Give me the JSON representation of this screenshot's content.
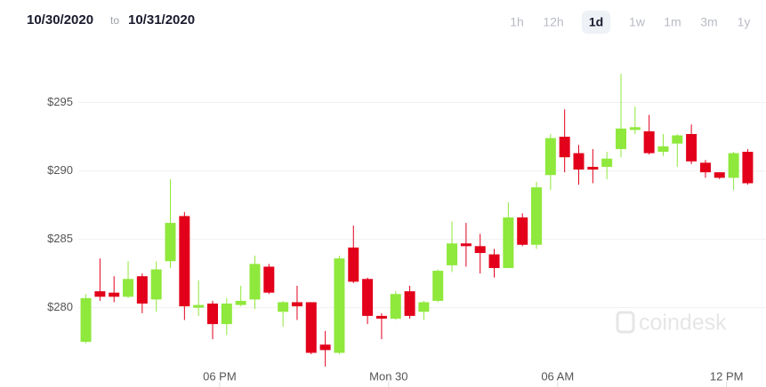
{
  "header": {
    "from": "10/30/2020",
    "to_word": "to",
    "to": "10/31/2020",
    "ranges": [
      "1h",
      "12h",
      "1d",
      "1w",
      "1m",
      "3m",
      "1y"
    ],
    "selected_range": "1d"
  },
  "watermark": "coindesk",
  "chart_data": {
    "type": "candlestick",
    "up_color": "#8fe83c",
    "down_color": "#e2001a",
    "grid": true,
    "open": [
      277.5,
      281.2,
      281.1,
      280.8,
      282.3,
      280.6,
      283.4,
      286.7,
      280.0,
      280.3,
      278.8,
      280.2,
      280.6,
      283.0,
      279.7,
      280.4,
      280.4,
      277.3,
      276.7,
      284.4,
      282.1,
      279.4,
      279.2,
      281.2,
      279.7,
      280.5,
      283.1,
      284.7,
      284.5,
      283.9,
      282.9,
      286.6,
      284.6,
      289.7,
      292.5,
      291.3,
      290.3,
      290.3,
      291.6,
      293.0,
      292.9,
      291.4,
      292.0,
      292.7,
      290.6,
      289.9,
      289.5,
      291.4
    ],
    "high": [
      281.0,
      283.6,
      282.3,
      283.4,
      282.5,
      283.4,
      289.4,
      287.0,
      282.0,
      280.5,
      280.7,
      281.6,
      283.8,
      283.2,
      280.5,
      281.6,
      280.4,
      278.3,
      283.8,
      286.0,
      282.2,
      279.6,
      281.2,
      281.6,
      280.5,
      282.8,
      286.3,
      286.2,
      285.4,
      284.3,
      287.7,
      286.9,
      289.2,
      292.7,
      294.5,
      291.9,
      291.6,
      291.4,
      297.1,
      294.7,
      294.1,
      292.7,
      292.7,
      293.4,
      290.8,
      289.9,
      291.4,
      291.6
    ],
    "low": [
      277.4,
      280.5,
      280.4,
      280.7,
      279.6,
      279.7,
      282.9,
      279.1,
      279.4,
      277.7,
      278.0,
      280.1,
      279.9,
      281.0,
      278.6,
      279.1,
      276.6,
      275.7,
      276.6,
      281.8,
      278.8,
      277.7,
      279.1,
      279.2,
      279.1,
      280.4,
      282.6,
      283.0,
      282.5,
      282.2,
      282.9,
      284.5,
      284.3,
      288.6,
      289.9,
      289.0,
      289.1,
      289.4,
      291.0,
      292.7,
      291.2,
      291.1,
      290.3,
      290.5,
      289.5,
      289.4,
      288.6,
      289.0
    ],
    "close": [
      280.7,
      280.8,
      280.8,
      282.1,
      280.3,
      282.8,
      286.2,
      280.1,
      280.2,
      278.8,
      280.3,
      280.5,
      283.2,
      281.1,
      280.4,
      280.1,
      276.7,
      276.9,
      283.6,
      281.9,
      279.4,
      279.2,
      281.0,
      279.4,
      280.4,
      282.7,
      284.7,
      284.5,
      284.0,
      282.9,
      286.6,
      284.6,
      288.8,
      292.4,
      291.0,
      290.1,
      290.1,
      290.9,
      293.1,
      293.2,
      291.3,
      291.8,
      292.6,
      290.7,
      289.9,
      289.5,
      291.3,
      289.1
    ],
    "xlim": [
      -6.1,
      48.3
    ],
    "xticks": [
      {
        "value": 9.5,
        "label": "06 PM"
      },
      {
        "value": 21.5,
        "label": "Mon 30"
      },
      {
        "value": 33.5,
        "label": "06 AM"
      },
      {
        "value": 45.5,
        "label": "12 PM"
      }
    ],
    "ylim": [
      274.2,
      302.5
    ],
    "yticks": [
      {
        "value": 280,
        "label": "$280"
      },
      {
        "value": 285,
        "label": "$285"
      },
      {
        "value": 290,
        "label": "$290"
      },
      {
        "value": 295,
        "label": "$295"
      }
    ]
  }
}
